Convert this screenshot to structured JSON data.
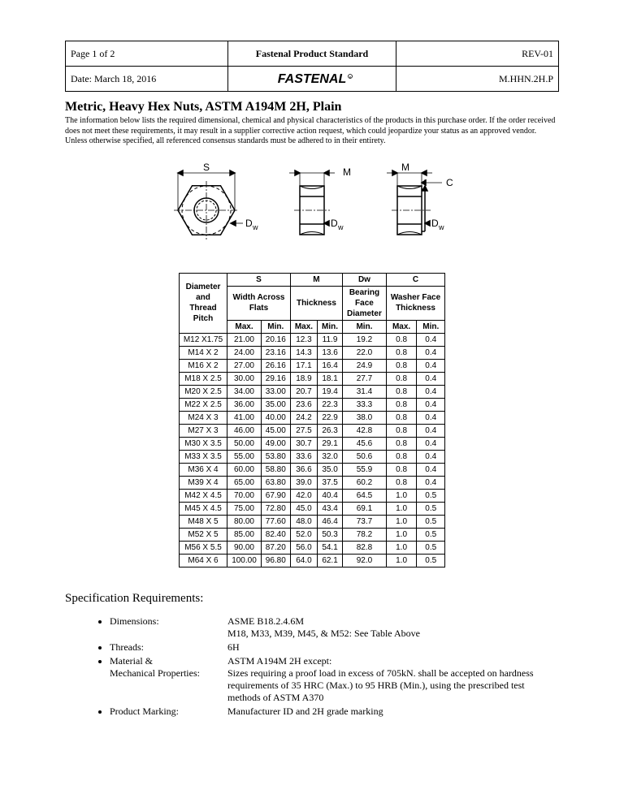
{
  "header": {
    "page": "Page 1 of 2",
    "standard": "Fastenal Product Standard",
    "rev": "REV-01",
    "date": "Date: March 18, 2016",
    "code": "M.HHN.2H.P",
    "logo_text": "FASTENAL"
  },
  "title": "Metric, Heavy Hex Nuts, ASTM A194M 2H, Plain",
  "intro": "The information below lists the required dimensional, chemical and physical characteristics of the products in this purchase order.  If the order received does not meet these requirements, it may result in a supplier corrective action request, which could jeopardize your status as an approved vendor. Unless otherwise specified, all referenced consensus standards must be adhered to in their entirety.",
  "diagram_labels": {
    "S": "S",
    "M": "M",
    "C": "C",
    "Dw": "Dw"
  },
  "table": {
    "first_col_header": "Diameter\nand\nThread\nPitch",
    "groups": [
      {
        "code": "S",
        "label": "Width Across\nFlats",
        "subs": [
          "Max.",
          "Min."
        ]
      },
      {
        "code": "M",
        "label": "Thickness",
        "subs": [
          "Max.",
          "Min."
        ]
      },
      {
        "code": "Dw",
        "label": "Bearing\nFace\nDiameter",
        "subs": [
          "Min."
        ]
      },
      {
        "code": "C",
        "label": "Washer Face\nThickness",
        "subs": [
          "Max.",
          "Min."
        ]
      }
    ],
    "rows": [
      {
        "label": "M12 X1.75",
        "vals": [
          "21.00",
          "20.16",
          "12.3",
          "11.9",
          "19.2",
          "0.8",
          "0.4"
        ]
      },
      {
        "label": "M14 X 2",
        "vals": [
          "24.00",
          "23.16",
          "14.3",
          "13.6",
          "22.0",
          "0.8",
          "0.4"
        ]
      },
      {
        "label": "M16 X 2",
        "vals": [
          "27.00",
          "26.16",
          "17.1",
          "16.4",
          "24.9",
          "0.8",
          "0.4"
        ]
      },
      {
        "label": "M18 X 2.5",
        "vals": [
          "30.00",
          "29.16",
          "18.9",
          "18.1",
          "27.7",
          "0.8",
          "0.4"
        ]
      },
      {
        "label": "M20 X 2.5",
        "vals": [
          "34.00",
          "33.00",
          "20.7",
          "19.4",
          "31.4",
          "0.8",
          "0.4"
        ]
      },
      {
        "label": "M22 X 2.5",
        "vals": [
          "36.00",
          "35.00",
          "23.6",
          "22.3",
          "33.3",
          "0.8",
          "0.4"
        ]
      },
      {
        "label": "M24 X 3",
        "vals": [
          "41.00",
          "40.00",
          "24.2",
          "22.9",
          "38.0",
          "0.8",
          "0.4"
        ]
      },
      {
        "label": "M27 X 3",
        "vals": [
          "46.00",
          "45.00",
          "27.5",
          "26.3",
          "42.8",
          "0.8",
          "0.4"
        ]
      },
      {
        "label": "M30 X 3.5",
        "vals": [
          "50.00",
          "49.00",
          "30.7",
          "29.1",
          "45.6",
          "0.8",
          "0.4"
        ]
      },
      {
        "label": "M33 X 3.5",
        "vals": [
          "55.00",
          "53.80",
          "33.6",
          "32.0",
          "50.6",
          "0.8",
          "0.4"
        ]
      },
      {
        "label": "M36 X 4",
        "vals": [
          "60.00",
          "58.80",
          "36.6",
          "35.0",
          "55.9",
          "0.8",
          "0.4"
        ]
      },
      {
        "label": "M39 X 4",
        "vals": [
          "65.00",
          "63.80",
          "39.0",
          "37.5",
          "60.2",
          "0.8",
          "0.4"
        ]
      },
      {
        "label": "M42 X 4.5",
        "vals": [
          "70.00",
          "67.90",
          "42.0",
          "40.4",
          "64.5",
          "1.0",
          "0.5"
        ]
      },
      {
        "label": "M45 X 4.5",
        "vals": [
          "75.00",
          "72.80",
          "45.0",
          "43.4",
          "69.1",
          "1.0",
          "0.5"
        ]
      },
      {
        "label": "M48 X 5",
        "vals": [
          "80.00",
          "77.60",
          "48.0",
          "46.4",
          "73.7",
          "1.0",
          "0.5"
        ]
      },
      {
        "label": "M52 X 5",
        "vals": [
          "85.00",
          "82.40",
          "52.0",
          "50.3",
          "78.2",
          "1.0",
          "0.5"
        ]
      },
      {
        "label": "M56 X 5.5",
        "vals": [
          "90.00",
          "87.20",
          "56.0",
          "54.1",
          "82.8",
          "1.0",
          "0.5"
        ]
      },
      {
        "label": "M64 X 6",
        "vals": [
          "100.00",
          "96.80",
          "64.0",
          "62.1",
          "92.0",
          "1.0",
          "0.5"
        ]
      }
    ]
  },
  "spec_heading": "Specification Requirements:",
  "specs": [
    {
      "label": "Dimensions:",
      "value": "ASME B18.2.4.6M\nM18, M33, M39, M45, & M52: See Table Above"
    },
    {
      "label": "Threads:",
      "value": "6H"
    },
    {
      "label": "Material &\nMechanical Properties:",
      "value": "ASTM A194M 2H except:\nSizes requiring a proof load in excess of 705kN. shall be accepted on hardness requirements of 35 HRC (Max.) to 95 HRB (Min.), using the prescribed test methods of ASTM A370"
    },
    {
      "label": "Product Marking:",
      "value": "Manufacturer ID and 2H grade marking"
    }
  ]
}
